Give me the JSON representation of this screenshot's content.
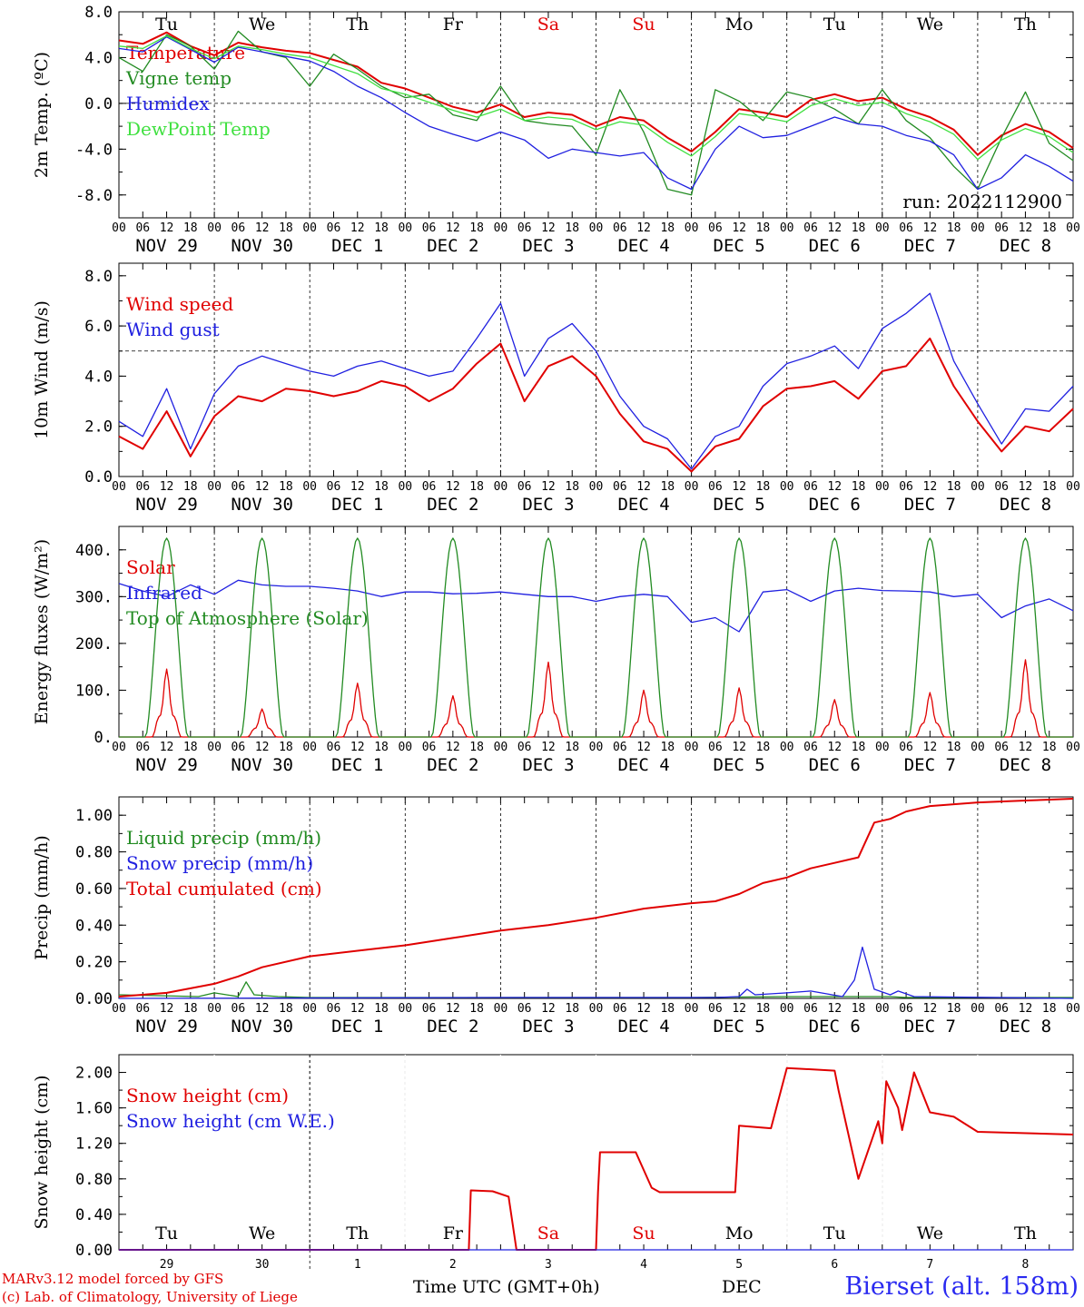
{
  "footer": {
    "credit_line1": "MARv3.12 model forced by GFS",
    "credit_line2": "(c) Lab. of Climatology, University of Liege",
    "xaxis_label": "Time UTC (GMT+0h)",
    "month_label": "DEC",
    "station": "Bierset (alt. 158m)"
  },
  "chart_data": [
    {
      "type": "line",
      "ylabel": "2m Temp. (ºC)",
      "ylim": [
        -10,
        8
      ],
      "yticks": [
        "8.0",
        "4.0",
        "0.0",
        "-4.0",
        "-8.0"
      ],
      "ytick_values": [
        8,
        4,
        0,
        -4,
        -8
      ],
      "ref_line": 0,
      "run_label": "run: 2022112900",
      "day_names": [
        "Tu",
        "We",
        "Th",
        "Fr",
        "Sa",
        "Su",
        "Mo",
        "Tu",
        "We",
        "Th"
      ],
      "day_name_colors": [
        "#000000",
        "#000000",
        "#000000",
        "#000000",
        "#e00000",
        "#e00000",
        "#000000",
        "#000000",
        "#000000",
        "#000000"
      ],
      "date_labels": [
        "NOV 29",
        "NOV 30",
        "DEC  1",
        "DEC  2",
        "DEC  3",
        "DEC  4",
        "DEC  5",
        "DEC  6",
        "DEC  7",
        "DEC  8"
      ],
      "hour_ticks": [
        "00",
        "06",
        "12",
        "18"
      ],
      "x_unit": "hours since 2022-11-29 00 UTC",
      "series": [
        {
          "name": "Temperature",
          "color": "#e00000",
          "x": [
            0,
            6,
            12,
            18,
            24,
            30,
            36,
            42,
            48,
            54,
            60,
            66,
            72,
            78,
            84,
            90,
            96,
            102,
            108,
            114,
            120,
            126,
            132,
            138,
            144,
            150,
            156,
            162,
            168,
            174,
            180,
            186,
            192,
            198,
            204,
            210,
            216,
            222,
            228,
            234,
            240
          ],
          "y": [
            5.5,
            5.2,
            6.2,
            5.0,
            4.2,
            5.3,
            4.9,
            4.6,
            4.4,
            3.8,
            3.2,
            1.8,
            1.3,
            0.5,
            -0.3,
            -0.8,
            -0.1,
            -1.2,
            -0.8,
            -1.0,
            -2.0,
            -1.2,
            -1.5,
            -3.0,
            -4.2,
            -2.5,
            -0.5,
            -0.8,
            -1.2,
            0.3,
            0.8,
            0.2,
            0.5,
            -0.5,
            -1.2,
            -2.3,
            -4.5,
            -2.8,
            -1.8,
            -2.5,
            -3.9
          ]
        },
        {
          "name": "Vigne temp",
          "color": "#228b22",
          "x": [
            0,
            6,
            12,
            18,
            24,
            30,
            36,
            42,
            48,
            54,
            60,
            66,
            72,
            78,
            84,
            90,
            96,
            102,
            108,
            114,
            120,
            126,
            132,
            138,
            144,
            150,
            156,
            162,
            168,
            174,
            180,
            186,
            192,
            198,
            204,
            210,
            216,
            222,
            228,
            234,
            240
          ],
          "y": [
            4.0,
            2.8,
            6.0,
            5.0,
            3.0,
            6.3,
            4.5,
            4.0,
            1.5,
            4.3,
            3.0,
            1.5,
            0.5,
            0.8,
            -1.0,
            -1.5,
            1.5,
            -1.5,
            -1.8,
            -2.0,
            -4.5,
            1.2,
            -2.5,
            -7.5,
            -8.0,
            1.2,
            0.2,
            -1.5,
            1.0,
            0.5,
            -0.5,
            -1.8,
            1.2,
            -1.5,
            -3.0,
            -5.5,
            -7.5,
            -3.0,
            1.0,
            -3.5,
            -5.0
          ]
        },
        {
          "name": "Humidex",
          "color": "#2020e0",
          "x": [
            0,
            6,
            12,
            18,
            24,
            30,
            36,
            42,
            48,
            54,
            60,
            66,
            72,
            78,
            84,
            90,
            96,
            102,
            108,
            114,
            120,
            126,
            132,
            138,
            144,
            150,
            156,
            162,
            168,
            174,
            180,
            186,
            192,
            198,
            204,
            210,
            216,
            222,
            228,
            234,
            240
          ],
          "y": [
            4.8,
            4.5,
            5.8,
            4.7,
            3.6,
            4.9,
            4.5,
            4.1,
            3.7,
            2.8,
            1.5,
            0.5,
            -0.8,
            -2.0,
            -2.7,
            -3.3,
            -2.5,
            -3.2,
            -4.8,
            -4.0,
            -4.3,
            -4.6,
            -4.3,
            -6.5,
            -7.5,
            -4.0,
            -2.0,
            -3.0,
            -2.8,
            -2.0,
            -1.2,
            -1.8,
            -2.0,
            -2.8,
            -3.3,
            -4.5,
            -7.5,
            -6.5,
            -4.5,
            -5.5,
            -6.8
          ]
        },
        {
          "name": "DewPoint Temp",
          "color": "#40e040",
          "x": [
            0,
            6,
            12,
            18,
            24,
            30,
            36,
            42,
            48,
            54,
            60,
            66,
            72,
            78,
            84,
            90,
            96,
            102,
            108,
            114,
            120,
            126,
            132,
            138,
            144,
            150,
            156,
            162,
            168,
            174,
            180,
            186,
            192,
            198,
            204,
            210,
            216,
            222,
            228,
            234,
            240
          ],
          "y": [
            5.0,
            4.8,
            5.9,
            4.8,
            3.9,
            5.0,
            4.7,
            4.3,
            4.0,
            3.3,
            2.6,
            1.3,
            0.8,
            0.1,
            -0.6,
            -1.2,
            -0.5,
            -1.5,
            -1.2,
            -1.4,
            -2.3,
            -1.6,
            -1.9,
            -3.4,
            -4.6,
            -2.9,
            -0.9,
            -1.2,
            -1.6,
            -0.2,
            0.4,
            -0.2,
            0.1,
            -0.9,
            -1.6,
            -2.7,
            -4.9,
            -3.2,
            -2.2,
            -2.9,
            -4.3
          ]
        }
      ]
    },
    {
      "type": "line",
      "ylabel": "10m Wind (m/s)",
      "ylim": [
        0,
        8.5
      ],
      "yticks": [
        "8.0",
        "6.0",
        "4.0",
        "2.0",
        "0.0"
      ],
      "ytick_values": [
        8,
        6,
        4,
        2,
        0
      ],
      "ref_line": 5,
      "date_labels": [
        "NOV 29",
        "NOV 30",
        "DEC  1",
        "DEC  2",
        "DEC  3",
        "DEC  4",
        "DEC  5",
        "DEC  6",
        "DEC  7",
        "DEC  8"
      ],
      "hour_ticks": [
        "00",
        "06",
        "12",
        "18"
      ],
      "x_unit": "hours since 2022-11-29 00 UTC",
      "series": [
        {
          "name": "Wind speed",
          "color": "#e00000",
          "x": [
            0,
            6,
            12,
            18,
            24,
            30,
            36,
            42,
            48,
            54,
            60,
            66,
            72,
            78,
            84,
            90,
            96,
            102,
            108,
            114,
            120,
            126,
            132,
            138,
            144,
            150,
            156,
            162,
            168,
            174,
            180,
            186,
            192,
            198,
            204,
            210,
            216,
            222,
            228,
            234,
            240
          ],
          "y": [
            1.6,
            1.1,
            2.6,
            0.8,
            2.4,
            3.2,
            3.0,
            3.5,
            3.4,
            3.2,
            3.4,
            3.8,
            3.6,
            3.0,
            3.5,
            4.5,
            5.3,
            3.0,
            4.4,
            4.8,
            4.0,
            2.5,
            1.4,
            1.1,
            0.2,
            1.2,
            1.5,
            2.8,
            3.5,
            3.6,
            3.8,
            3.1,
            4.2,
            4.4,
            5.5,
            3.6,
            2.2,
            1.0,
            2.0,
            1.8,
            2.7
          ]
        },
        {
          "name": "Wind gust",
          "color": "#2020e0",
          "x": [
            0,
            6,
            12,
            18,
            24,
            30,
            36,
            42,
            48,
            54,
            60,
            66,
            72,
            78,
            84,
            90,
            96,
            102,
            108,
            114,
            120,
            126,
            132,
            138,
            144,
            150,
            156,
            162,
            168,
            174,
            180,
            186,
            192,
            198,
            204,
            210,
            216,
            222,
            228,
            234,
            240
          ],
          "y": [
            2.2,
            1.6,
            3.5,
            1.1,
            3.3,
            4.4,
            4.8,
            4.5,
            4.2,
            4.0,
            4.4,
            4.6,
            4.3,
            4.0,
            4.2,
            5.5,
            6.9,
            4.0,
            5.5,
            6.1,
            5.0,
            3.2,
            2.0,
            1.5,
            0.3,
            1.6,
            2.0,
            3.6,
            4.5,
            4.8,
            5.2,
            4.3,
            5.9,
            6.5,
            7.3,
            4.6,
            2.9,
            1.3,
            2.7,
            2.6,
            3.6
          ]
        }
      ]
    },
    {
      "type": "line",
      "ylabel": "Energy fluxes (W/m²)",
      "ylim": [
        0,
        450
      ],
      "yticks": [
        "400.",
        "300.",
        "200.",
        "100.",
        "0."
      ],
      "ytick_values": [
        400,
        300,
        200,
        100,
        0
      ],
      "date_labels": [
        "NOV 29",
        "NOV 30",
        "DEC  1",
        "DEC  2",
        "DEC  3",
        "DEC  4",
        "DEC  5",
        "DEC  6",
        "DEC  7",
        "DEC  8"
      ],
      "hour_ticks": [
        "00",
        "06",
        "12",
        "18"
      ],
      "x_unit": "hours since 2022-11-29 00 UTC",
      "toa_peak": 425,
      "solar_peaks": [
        145,
        60,
        115,
        88,
        160,
        100,
        105,
        80,
        95,
        165
      ],
      "series": [
        {
          "name": "Solar",
          "color": "#e00000"
        },
        {
          "name": "Infrared",
          "color": "#2020e0",
          "x": [
            0,
            6,
            12,
            18,
            24,
            30,
            36,
            42,
            48,
            54,
            60,
            66,
            72,
            78,
            84,
            90,
            96,
            102,
            108,
            114,
            120,
            126,
            132,
            138,
            144,
            150,
            156,
            162,
            168,
            174,
            180,
            186,
            192,
            198,
            204,
            210,
            216,
            222,
            228,
            234,
            240
          ],
          "y": [
            328,
            312,
            300,
            325,
            305,
            335,
            325,
            322,
            322,
            318,
            312,
            300,
            310,
            310,
            306,
            307,
            310,
            305,
            300,
            300,
            290,
            300,
            305,
            300,
            245,
            255,
            225,
            310,
            315,
            290,
            312,
            318,
            313,
            312,
            310,
            300,
            305,
            255,
            280,
            295,
            270
          ]
        },
        {
          "name": "Top of Atmosphere (Solar)",
          "color": "#228b22"
        }
      ]
    },
    {
      "type": "line",
      "ylabel": "Precip (mm/h)",
      "ylim": [
        0,
        1.1
      ],
      "yticks": [
        "1.00",
        "0.80",
        "0.60",
        "0.40",
        "0.20",
        "0.00"
      ],
      "ytick_values": [
        1,
        0.8,
        0.6,
        0.4,
        0.2,
        0
      ],
      "date_labels": [
        "NOV 29",
        "NOV 30",
        "DEC  1",
        "DEC  2",
        "DEC  3",
        "DEC  4",
        "DEC  5",
        "DEC  6",
        "DEC  7",
        "DEC  8"
      ],
      "hour_ticks": [
        "00",
        "06",
        "12",
        "18"
      ],
      "x_unit": "hours since 2022-11-29 00 UTC",
      "series": [
        {
          "name": "Liquid precip (mm/h)",
          "color": "#228b22",
          "x": [
            0,
            20,
            24,
            30,
            32,
            34,
            40,
            48,
            60,
            96,
            120,
            144,
            168,
            180,
            190,
            194,
            198,
            240
          ],
          "y": [
            0.02,
            0.01,
            0.03,
            0.01,
            0.09,
            0.02,
            0.01,
            0.005,
            0.005,
            0.005,
            0.005,
            0.005,
            0.01,
            0.01,
            0.01,
            0.01,
            0.005,
            0.005
          ]
        },
        {
          "name": "Snow precip (mm/h)",
          "color": "#2020e0",
          "x": [
            0,
            100,
            120,
            150,
            156,
            158,
            160,
            168,
            174,
            182,
            185,
            187,
            190,
            194,
            196,
            200,
            240
          ],
          "y": [
            0,
            0.005,
            0.005,
            0.005,
            0.01,
            0.05,
            0.02,
            0.03,
            0.04,
            0.01,
            0.1,
            0.28,
            0.05,
            0.02,
            0.04,
            0.01,
            0.0
          ]
        },
        {
          "name": "Total cumulated (cm)",
          "color": "#e00000",
          "x": [
            0,
            12,
            24,
            30,
            36,
            48,
            60,
            72,
            84,
            96,
            108,
            120,
            132,
            144,
            150,
            156,
            162,
            168,
            174,
            180,
            186,
            190,
            194,
            198,
            204,
            216,
            228,
            240
          ],
          "y": [
            0.01,
            0.03,
            0.08,
            0.12,
            0.17,
            0.23,
            0.26,
            0.29,
            0.33,
            0.37,
            0.4,
            0.44,
            0.49,
            0.52,
            0.53,
            0.57,
            0.63,
            0.66,
            0.71,
            0.74,
            0.77,
            0.96,
            0.98,
            1.02,
            1.05,
            1.07,
            1.08,
            1.09
          ]
        }
      ]
    },
    {
      "type": "line",
      "ylabel": "Snow height (cm)",
      "ylim": [
        0,
        2.2
      ],
      "yticks": [
        "2.00",
        "1.60",
        "1.20",
        "0.80",
        "0.40",
        "0.00"
      ],
      "ytick_values": [
        2,
        1.6,
        1.2,
        0.8,
        0.4,
        0
      ],
      "day_names": [
        "Tu",
        "We",
        "Th",
        "Fr",
        "Sa",
        "Su",
        "Mo",
        "Tu",
        "We",
        "Th"
      ],
      "day_name_colors": [
        "#000000",
        "#000000",
        "#000000",
        "#000000",
        "#e00000",
        "#e00000",
        "#000000",
        "#000000",
        "#000000",
        "#000000"
      ],
      "day_numbers": [
        "29",
        "30",
        "1",
        "2",
        "3",
        "4",
        "5",
        "6",
        "7",
        "8"
      ],
      "x_unit": "hours since 2022-11-29 00 UTC",
      "series": [
        {
          "name": "Snow height (cm)",
          "color": "#e00000",
          "x": [
            0,
            88,
            88.5,
            94,
            98,
            100,
            100.5,
            120,
            120.5,
            121,
            130,
            134,
            136,
            144,
            155,
            156,
            164,
            168,
            180,
            181,
            186,
            191,
            192,
            193,
            196,
            197,
            200,
            204,
            210,
            216,
            240
          ],
          "y": [
            0,
            0,
            0.67,
            0.66,
            0.6,
            0.0,
            0,
            0,
            0.65,
            1.1,
            1.1,
            0.7,
            0.65,
            0.65,
            0.65,
            1.4,
            1.37,
            2.05,
            2.02,
            1.8,
            0.8,
            1.45,
            1.2,
            1.9,
            1.6,
            1.35,
            2.0,
            1.55,
            1.5,
            1.33,
            1.3
          ]
        },
        {
          "name": "Snow height (cm W.E.)",
          "color": "#2020e0",
          "x": [
            0,
            240
          ],
          "y": [
            0,
            0
          ]
        }
      ]
    }
  ]
}
